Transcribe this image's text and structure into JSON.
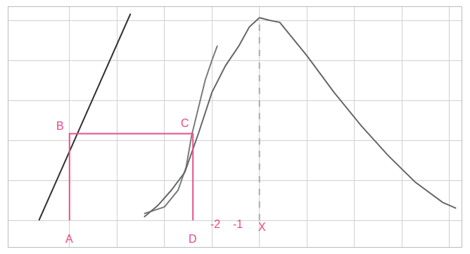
{
  "chart_data": {
    "type": "line",
    "grid": true,
    "tick_labels": false,
    "xlim": [
      0,
      668
    ],
    "ylim": [
      -40,
      320
    ],
    "xticks": [
      90,
      160,
      230,
      300,
      370,
      440,
      510,
      580,
      650
    ],
    "yticks": [
      0,
      60,
      120,
      180,
      240,
      300
    ],
    "series": [
      {
        "color": "#333333",
        "line_style": "solid",
        "x": [
          45,
          180
        ],
        "values": [
          0,
          310
        ]
      },
      {
        "color": "#7a7a7a",
        "line_style": "solid",
        "x": [
          200,
          230,
          250,
          262,
          270,
          280,
          290,
          300,
          308
        ],
        "values": [
          10,
          20,
          45,
          80,
          127,
          170,
          210,
          240,
          262
        ]
      },
      {
        "color": "#666666",
        "line_style": "solid",
        "x": [
          200,
          220,
          240,
          260,
          280,
          300,
          320,
          340,
          355,
          370,
          385,
          400,
          440,
          480,
          520,
          560,
          600,
          640,
          660
        ],
        "values": [
          5,
          22,
          45,
          72,
          130,
          192,
          232,
          262,
          290,
          304,
          300,
          297,
          247,
          192,
          142,
          97,
          57,
          27,
          18
        ]
      },
      {
        "color": "#aaaaaa",
        "line_style": "dash",
        "x": [
          370,
          370
        ],
        "values": [
          0,
          304
        ]
      },
      {
        "color": "#e8508a",
        "line_style": "solid",
        "x": [
          90,
          90,
          272,
          272
        ],
        "values": [
          0,
          130,
          130,
          0
        ]
      }
    ],
    "annotations": [
      {
        "text": "A",
        "x": 90,
        "y": -28
      },
      {
        "text": "B",
        "x": 76,
        "y": 142
      },
      {
        "text": "C",
        "x": 260,
        "y": 146
      },
      {
        "text": "D",
        "x": 272,
        "y": -28
      },
      {
        "text": "-2",
        "x": 305,
        "y": -6
      },
      {
        "text": "-1",
        "x": 338,
        "y": -6
      },
      {
        "text": "X",
        "x": 374,
        "y": -10
      }
    ],
    "annotation_color": "#e8508a"
  }
}
